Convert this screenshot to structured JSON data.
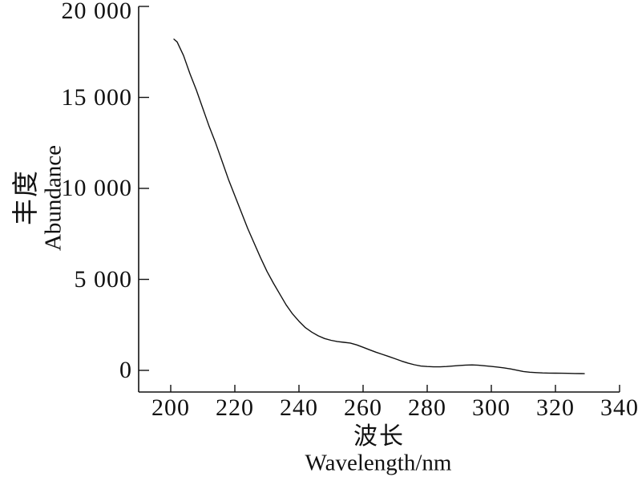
{
  "figure": {
    "background": "#ffffff",
    "axis_color": "#111111",
    "line_color": "#111111"
  },
  "chart_data": {
    "type": "line",
    "title": "",
    "xlabel_cn": "波长",
    "xlabel_en": "Wavelength/nm",
    "ylabel_cn": "丰度",
    "ylabel_en": "Abundance",
    "xlim": [
      190,
      340
    ],
    "ylim": [
      -1200,
      20000
    ],
    "grid": false,
    "legend": "none",
    "x_ticks": [
      {
        "value": 200,
        "label": "200"
      },
      {
        "value": 220,
        "label": "220"
      },
      {
        "value": 240,
        "label": "240"
      },
      {
        "value": 260,
        "label": "260"
      },
      {
        "value": 280,
        "label": "280"
      },
      {
        "value": 300,
        "label": "300"
      },
      {
        "value": 320,
        "label": "320"
      },
      {
        "value": 340,
        "label": "340"
      }
    ],
    "y_ticks": [
      {
        "value": 0,
        "label": "0"
      },
      {
        "value": 5000,
        "label": "5 000"
      },
      {
        "value": 10000,
        "label": "10 000"
      },
      {
        "value": 15000,
        "label": "15 000"
      },
      {
        "value": 20000,
        "label": "20 000"
      }
    ],
    "series": [
      {
        "name": "uv-absorbance-spectrum",
        "color": "#111111",
        "points": [
          [
            201,
            18200
          ],
          [
            202,
            18050
          ],
          [
            204,
            17300
          ],
          [
            206,
            16300
          ],
          [
            208,
            15400
          ],
          [
            210,
            14400
          ],
          [
            212,
            13400
          ],
          [
            214,
            12500
          ],
          [
            216,
            11500
          ],
          [
            218,
            10500
          ],
          [
            220,
            9600
          ],
          [
            222,
            8700
          ],
          [
            224,
            7800
          ],
          [
            226,
            7000
          ],
          [
            228,
            6200
          ],
          [
            230,
            5450
          ],
          [
            232,
            4800
          ],
          [
            234,
            4200
          ],
          [
            236,
            3600
          ],
          [
            238,
            3100
          ],
          [
            240,
            2700
          ],
          [
            242,
            2350
          ],
          [
            244,
            2100
          ],
          [
            246,
            1900
          ],
          [
            248,
            1750
          ],
          [
            250,
            1650
          ],
          [
            252,
            1580
          ],
          [
            254,
            1540
          ],
          [
            256,
            1500
          ],
          [
            258,
            1400
          ],
          [
            260,
            1270
          ],
          [
            262,
            1130
          ],
          [
            264,
            1000
          ],
          [
            266,
            880
          ],
          [
            268,
            760
          ],
          [
            270,
            640
          ],
          [
            272,
            510
          ],
          [
            274,
            400
          ],
          [
            276,
            310
          ],
          [
            278,
            240
          ],
          [
            280,
            210
          ],
          [
            282,
            195
          ],
          [
            284,
            195
          ],
          [
            286,
            210
          ],
          [
            288,
            240
          ],
          [
            290,
            270
          ],
          [
            292,
            290
          ],
          [
            294,
            300
          ],
          [
            296,
            280
          ],
          [
            298,
            250
          ],
          [
            300,
            215
          ],
          [
            302,
            180
          ],
          [
            304,
            135
          ],
          [
            306,
            80
          ],
          [
            308,
            10
          ],
          [
            310,
            -60
          ],
          [
            312,
            -100
          ],
          [
            314,
            -125
          ],
          [
            316,
            -140
          ],
          [
            318,
            -150
          ],
          [
            320,
            -155
          ],
          [
            322,
            -160
          ],
          [
            324,
            -165
          ],
          [
            326,
            -170
          ],
          [
            328,
            -175
          ],
          [
            329,
            -180
          ]
        ]
      }
    ]
  }
}
